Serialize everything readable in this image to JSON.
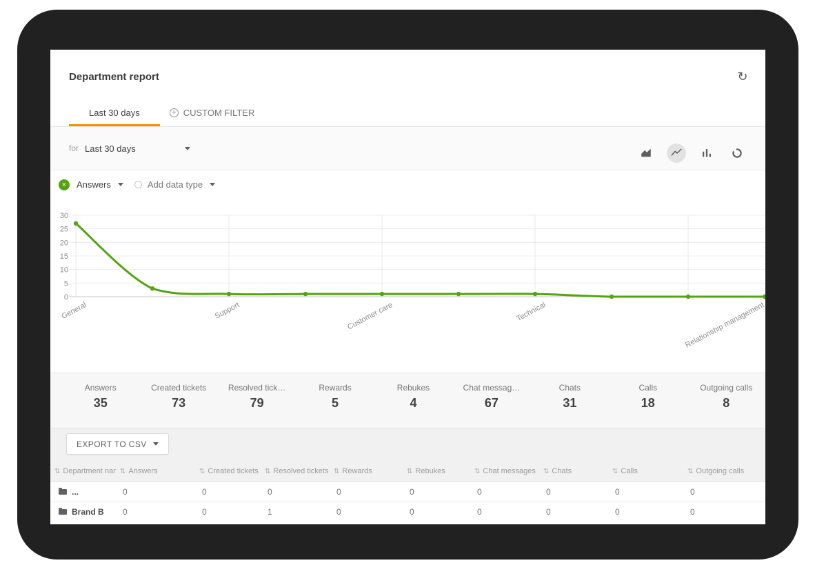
{
  "title": "Department report",
  "toolbar": {
    "refresh_icon": "refresh"
  },
  "tabs": {
    "tab1": "Last 30 days",
    "tab2": "CUSTOM FILTER"
  },
  "filter_bar": {
    "prefix": "for",
    "selected_range": "Last 30 days",
    "chart_type_icons": [
      "area-chart",
      "line-chart",
      "bar-chart",
      "donut-chart"
    ],
    "active_chart_type": "line-chart"
  },
  "series_bar": {
    "series_name": "Answers",
    "add_data_type_label": "Add data type"
  },
  "chart_data": {
    "type": "line",
    "title": "",
    "categories": [
      "General",
      "",
      "Support",
      "",
      "Customer care",
      "",
      "Technical",
      "",
      "Relationship management",
      ""
    ],
    "series": [
      {
        "name": "Answers",
        "color": "#54a40f",
        "values": [
          27,
          3,
          1,
          1,
          1,
          1,
          1,
          0,
          0,
          0
        ]
      }
    ],
    "yticks": [
      0,
      5,
      10,
      15,
      20,
      25,
      30
    ],
    "ylim": [
      0,
      30
    ],
    "grid": true,
    "x_label_angle": -28
  },
  "stats": {
    "items": [
      {
        "label": "Answers",
        "value": "35"
      },
      {
        "label": "Created tickets",
        "value": "73"
      },
      {
        "label": "Resolved tick…",
        "value": "79"
      },
      {
        "label": "Rewards",
        "value": "5"
      },
      {
        "label": "Rebukes",
        "value": "4"
      },
      {
        "label": "Chat messag…",
        "value": "67"
      },
      {
        "label": "Chats",
        "value": "31"
      },
      {
        "label": "Calls",
        "value": "18"
      },
      {
        "label": "Outgoing calls",
        "value": "8"
      }
    ]
  },
  "export_button": {
    "label": "EXPORT TO CSV"
  },
  "table": {
    "columns": [
      "Department name",
      "Answers",
      "Created tickets",
      "Resolved tickets",
      "Rewards",
      "Rebukes",
      "Chat messages",
      "Chats",
      "Calls",
      "Outgoing calls"
    ],
    "rows": [
      {
        "name": "...",
        "values": [
          "0",
          "0",
          "0",
          "0",
          "0",
          "0",
          "0",
          "0",
          "0"
        ]
      },
      {
        "name": "Brand B",
        "values": [
          "0",
          "0",
          "1",
          "0",
          "0",
          "0",
          "0",
          "0",
          "0"
        ]
      }
    ]
  },
  "colors": {
    "accent_orange": "#f59100",
    "accent_green": "#54a40f",
    "frame": "#212121",
    "axis_text": "#8c8c8c"
  }
}
